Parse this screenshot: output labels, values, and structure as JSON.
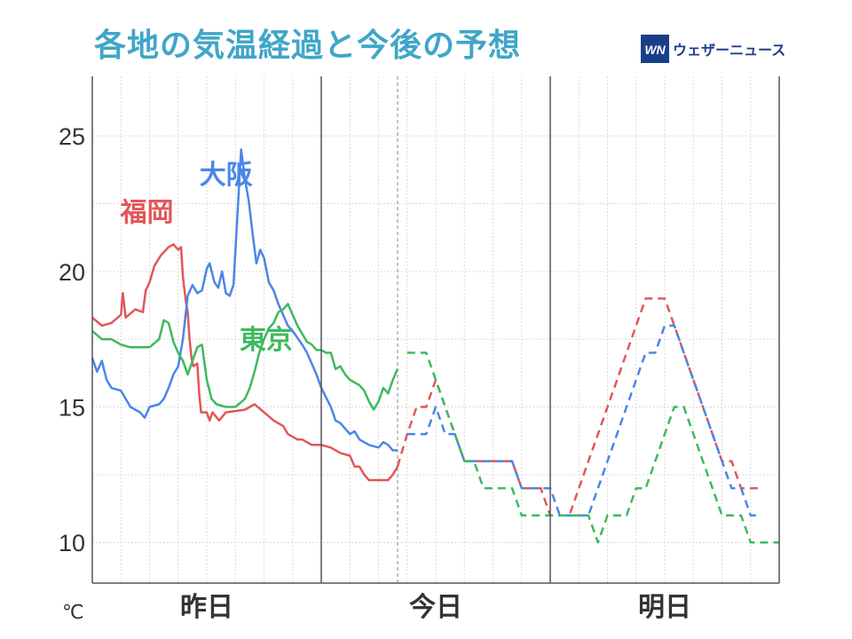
{
  "header": {
    "title": "各地の気温経過と今後の予想",
    "brand_mark": "WN",
    "brand_name": "ウェザーニュース"
  },
  "chart_data": {
    "type": "line",
    "title": "各地の気温経過と今後の予想",
    "ylabel": "℃",
    "ylim": [
      8.5,
      27.2
    ],
    "yticks": [
      10,
      15,
      20,
      25
    ],
    "xlim": [
      0,
      72
    ],
    "x_unit": "hours since 00:00 of 昨日",
    "days": [
      {
        "label": "昨日",
        "start": 0,
        "end": 24
      },
      {
        "label": "今日",
        "start": 24,
        "end": 48
      },
      {
        "label": "明日",
        "start": 48,
        "end": 72
      }
    ],
    "now_hour": 32,
    "grid": true,
    "series": [
      {
        "name": "福岡",
        "color": "#e15759",
        "observed": [
          [
            0,
            18.3
          ],
          [
            1,
            18
          ],
          [
            2,
            18.1
          ],
          [
            3,
            18.4
          ],
          [
            3.2,
            19.2
          ],
          [
            3.5,
            18.3
          ],
          [
            4.5,
            18.6
          ],
          [
            5.3,
            18.5
          ],
          [
            5.6,
            19.3
          ],
          [
            6,
            19.6
          ],
          [
            6.5,
            20.2
          ],
          [
            7.2,
            20.6
          ],
          [
            8,
            20.9
          ],
          [
            8.5,
            21
          ],
          [
            9,
            20.8
          ],
          [
            9.3,
            20.9
          ],
          [
            9.5,
            19.8
          ],
          [
            9.8,
            18.9
          ],
          [
            10,
            18.5
          ],
          [
            10.2,
            17.5
          ],
          [
            10.4,
            16.8
          ],
          [
            10.6,
            16.5
          ],
          [
            11,
            16.6
          ],
          [
            11.2,
            15.5
          ],
          [
            11.4,
            14.8
          ],
          [
            12,
            14.8
          ],
          [
            12.3,
            14.5
          ],
          [
            12.6,
            14.8
          ],
          [
            13.3,
            14.5
          ],
          [
            14,
            14.8
          ],
          [
            16,
            14.9
          ],
          [
            17,
            15.1
          ],
          [
            18,
            14.8
          ],
          [
            19,
            14.5
          ],
          [
            20,
            14.3
          ],
          [
            20.5,
            14
          ],
          [
            21.5,
            13.8
          ],
          [
            22,
            13.8
          ],
          [
            23,
            13.6
          ],
          [
            24,
            13.6
          ],
          [
            25,
            13.5
          ],
          [
            26,
            13.3
          ],
          [
            27,
            13.2
          ],
          [
            27.5,
            12.8
          ],
          [
            28,
            12.8
          ],
          [
            28.5,
            12.5
          ],
          [
            29,
            12.3
          ],
          [
            30,
            12.3
          ],
          [
            31,
            12.3
          ],
          [
            31.5,
            12.5
          ],
          [
            32,
            12.8
          ]
        ],
        "forecast": [
          [
            32,
            12.8
          ],
          [
            33,
            14
          ],
          [
            34,
            15
          ],
          [
            35,
            15
          ],
          [
            36,
            16
          ],
          [
            37,
            15
          ],
          [
            38,
            14
          ],
          [
            39,
            13
          ],
          [
            40,
            13
          ],
          [
            41,
            13
          ],
          [
            42,
            13
          ],
          [
            43,
            13
          ],
          [
            44,
            13
          ],
          [
            45,
            12
          ],
          [
            46,
            12
          ],
          [
            47,
            12
          ],
          [
            48,
            11
          ],
          [
            49,
            11
          ],
          [
            50,
            11
          ],
          [
            51,
            12
          ],
          [
            52,
            13
          ],
          [
            53,
            14
          ],
          [
            54,
            15
          ],
          [
            55,
            16
          ],
          [
            56,
            17
          ],
          [
            57,
            18
          ],
          [
            58,
            19
          ],
          [
            59,
            19
          ],
          [
            60,
            19
          ],
          [
            61,
            18
          ],
          [
            62,
            17
          ],
          [
            63,
            16
          ],
          [
            64,
            15
          ],
          [
            65,
            14
          ],
          [
            66,
            13
          ],
          [
            67,
            13
          ],
          [
            68,
            12
          ],
          [
            69,
            12
          ],
          [
            70,
            12
          ]
        ]
      },
      {
        "name": "大阪",
        "color": "#4a86e8",
        "observed": [
          [
            0,
            16.8
          ],
          [
            0.5,
            16.3
          ],
          [
            1,
            16.7
          ],
          [
            1.5,
            16
          ],
          [
            2,
            15.7
          ],
          [
            3,
            15.6
          ],
          [
            3.5,
            15.3
          ],
          [
            4,
            15
          ],
          [
            5,
            14.8
          ],
          [
            5.5,
            14.6
          ],
          [
            6,
            15
          ],
          [
            7,
            15.1
          ],
          [
            7.5,
            15.3
          ],
          [
            8,
            15.7
          ],
          [
            8.5,
            16.2
          ],
          [
            9,
            16.5
          ],
          [
            9.5,
            17.5
          ],
          [
            10,
            19.1
          ],
          [
            10.5,
            19.5
          ],
          [
            11,
            19.2
          ],
          [
            11.5,
            19.3
          ],
          [
            12,
            20.1
          ],
          [
            12.3,
            20.3
          ],
          [
            12.8,
            19.6
          ],
          [
            13.2,
            19.4
          ],
          [
            13.6,
            20
          ],
          [
            14,
            19.2
          ],
          [
            14.4,
            19.1
          ],
          [
            14.8,
            19.5
          ],
          [
            15.2,
            22
          ],
          [
            15.6,
            24.5
          ],
          [
            16,
            23.4
          ],
          [
            16.4,
            22.6
          ],
          [
            16.8,
            21.4
          ],
          [
            17.2,
            20.3
          ],
          [
            17.6,
            20.8
          ],
          [
            18,
            20.5
          ],
          [
            18.5,
            19.6
          ],
          [
            19,
            19.3
          ],
          [
            19.5,
            18.8
          ],
          [
            20,
            18.4
          ],
          [
            20.5,
            18
          ],
          [
            21,
            17.8
          ],
          [
            22,
            17.3
          ],
          [
            22.5,
            17
          ],
          [
            23,
            16.6
          ],
          [
            23.5,
            16.2
          ],
          [
            24,
            15.7
          ],
          [
            25,
            15
          ],
          [
            25.5,
            14.5
          ],
          [
            26,
            14.4
          ],
          [
            26.5,
            14.2
          ],
          [
            27,
            14
          ],
          [
            27.5,
            14.1
          ],
          [
            28,
            13.8
          ],
          [
            29,
            13.6
          ],
          [
            30,
            13.5
          ],
          [
            30.5,
            13.7
          ],
          [
            31,
            13.6
          ],
          [
            31.5,
            13.4
          ],
          [
            32,
            13.4
          ]
        ],
        "forecast": [
          [
            33,
            14
          ],
          [
            34,
            14
          ],
          [
            35,
            14
          ],
          [
            36,
            15
          ],
          [
            37,
            14
          ],
          [
            38,
            14
          ],
          [
            39,
            13
          ],
          [
            40,
            13
          ],
          [
            41,
            13
          ],
          [
            42,
            13
          ],
          [
            43,
            13
          ],
          [
            44,
            13
          ],
          [
            45,
            12
          ],
          [
            46,
            12
          ],
          [
            47,
            12
          ],
          [
            48,
            12
          ],
          [
            49,
            11
          ],
          [
            50,
            11
          ],
          [
            51,
            11
          ],
          [
            52,
            11
          ],
          [
            53,
            12
          ],
          [
            54,
            13
          ],
          [
            55,
            14
          ],
          [
            56,
            15
          ],
          [
            57,
            16
          ],
          [
            58,
            17
          ],
          [
            59,
            17
          ],
          [
            60,
            18
          ],
          [
            61,
            18
          ],
          [
            62,
            17
          ],
          [
            63,
            16
          ],
          [
            64,
            15
          ],
          [
            65,
            14
          ],
          [
            66,
            13
          ],
          [
            67,
            12
          ],
          [
            68,
            12
          ],
          [
            69,
            11
          ],
          [
            70,
            11
          ]
        ]
      },
      {
        "name": "東京",
        "color": "#3dba5e",
        "observed": [
          [
            0,
            17.8
          ],
          [
            1,
            17.5
          ],
          [
            2,
            17.5
          ],
          [
            3,
            17.3
          ],
          [
            4,
            17.2
          ],
          [
            5,
            17.2
          ],
          [
            6,
            17.2
          ],
          [
            7,
            17.5
          ],
          [
            7.5,
            18.2
          ],
          [
            8,
            18.1
          ],
          [
            8.5,
            17.4
          ],
          [
            9,
            17
          ],
          [
            9.5,
            16.7
          ],
          [
            10,
            16.2
          ],
          [
            10.5,
            16.7
          ],
          [
            11,
            17.2
          ],
          [
            11.5,
            17.3
          ],
          [
            12,
            16
          ],
          [
            12.5,
            15.3
          ],
          [
            13,
            15.1
          ],
          [
            14,
            15
          ],
          [
            15,
            15
          ],
          [
            16,
            15.3
          ],
          [
            16.5,
            15.7
          ],
          [
            17,
            16.3
          ],
          [
            17.5,
            17
          ],
          [
            18,
            17.5
          ],
          [
            18.5,
            17.9
          ],
          [
            19,
            18.1
          ],
          [
            19.5,
            18.5
          ],
          [
            20,
            18.6
          ],
          [
            20.5,
            18.8
          ],
          [
            21,
            18.4
          ],
          [
            21.5,
            18
          ],
          [
            22,
            17.7
          ],
          [
            22.5,
            17.4
          ],
          [
            23,
            17.3
          ],
          [
            23.5,
            17.1
          ],
          [
            24,
            17.1
          ],
          [
            24.5,
            17
          ],
          [
            25,
            17
          ],
          [
            25.5,
            16.4
          ],
          [
            26,
            16.5
          ],
          [
            26.5,
            16.2
          ],
          [
            27,
            16
          ],
          [
            28,
            15.8
          ],
          [
            28.5,
            15.6
          ],
          [
            29,
            15.2
          ],
          [
            29.5,
            14.9
          ],
          [
            30,
            15.2
          ],
          [
            30.5,
            15.7
          ],
          [
            31,
            15.5
          ],
          [
            31.5,
            16
          ],
          [
            32,
            16.4
          ]
        ],
        "forecast": [
          [
            33,
            17
          ],
          [
            34,
            17
          ],
          [
            35,
            17
          ],
          [
            36,
            16
          ],
          [
            37,
            15
          ],
          [
            38,
            14
          ],
          [
            39,
            13
          ],
          [
            40,
            13
          ],
          [
            41,
            12
          ],
          [
            42,
            12
          ],
          [
            43,
            12
          ],
          [
            44,
            12
          ],
          [
            45,
            11
          ],
          [
            46,
            11
          ],
          [
            47,
            11
          ],
          [
            48,
            11
          ],
          [
            49,
            11
          ],
          [
            50,
            11
          ],
          [
            51,
            11
          ],
          [
            52,
            11
          ],
          [
            53,
            10
          ],
          [
            54,
            11
          ],
          [
            55,
            11
          ],
          [
            56,
            11
          ],
          [
            57,
            12
          ],
          [
            58,
            12
          ],
          [
            59,
            13
          ],
          [
            60,
            14
          ],
          [
            61,
            15
          ],
          [
            62,
            15
          ],
          [
            63,
            14
          ],
          [
            64,
            13
          ],
          [
            65,
            12
          ],
          [
            66,
            11
          ],
          [
            67,
            11
          ],
          [
            68,
            11
          ],
          [
            69,
            10
          ],
          [
            70,
            10
          ],
          [
            71,
            10
          ],
          [
            72,
            10
          ]
        ]
      }
    ]
  }
}
